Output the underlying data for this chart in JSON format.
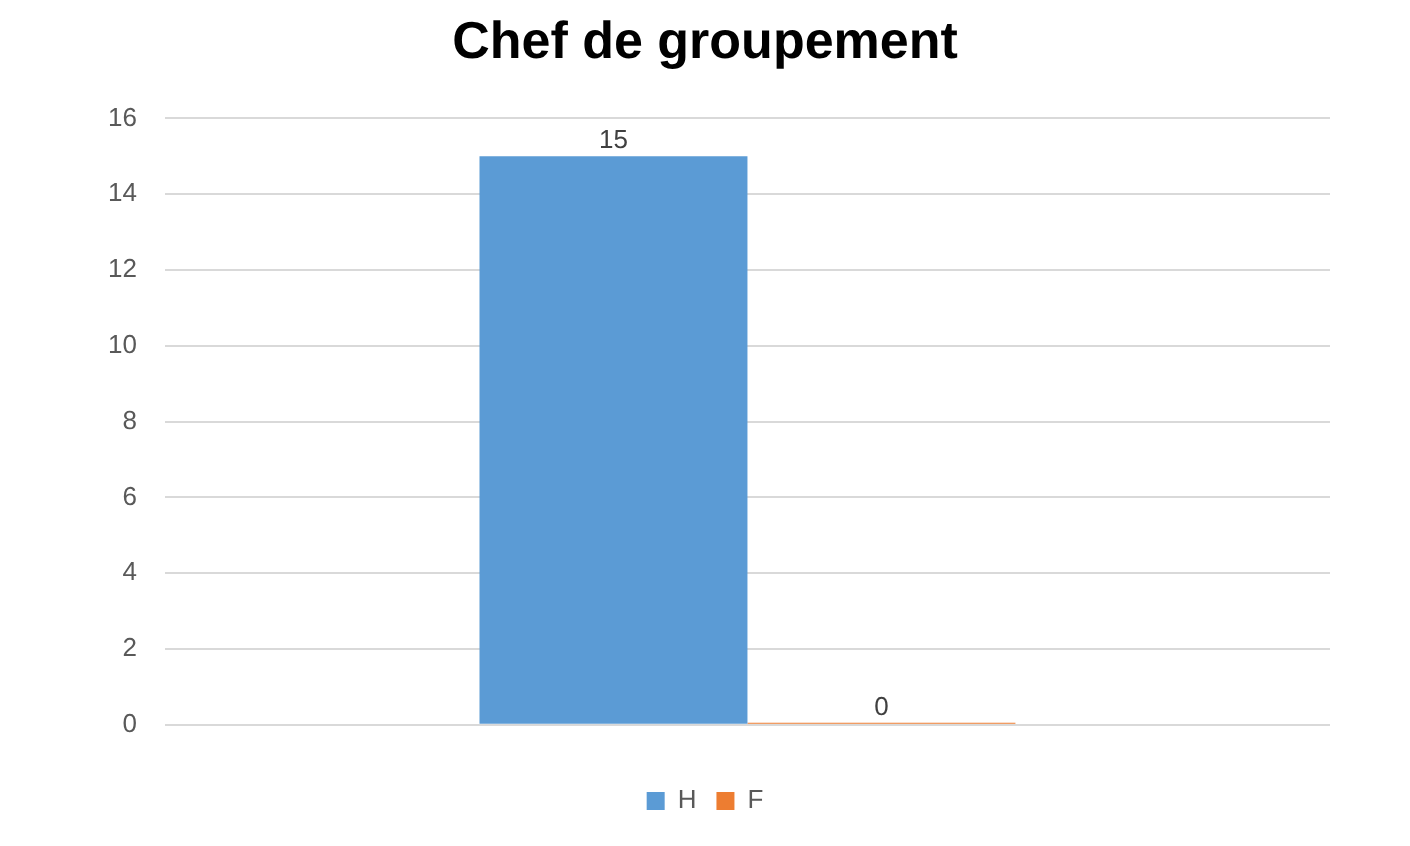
{
  "chart_data": {
    "type": "bar",
    "title": "Chef de groupement",
    "categories": [
      null
    ],
    "series": [
      {
        "name": "H",
        "color": "#5b9bd5",
        "values": [
          15
        ]
      },
      {
        "name": "F",
        "color": "#ed7d31",
        "values": [
          0
        ]
      }
    ],
    "ylim": [
      0,
      16
    ],
    "yticks": [
      0,
      2,
      4,
      6,
      8,
      10,
      12,
      14,
      16
    ],
    "grid": "y",
    "legend": "bottom",
    "data_labels": true
  }
}
